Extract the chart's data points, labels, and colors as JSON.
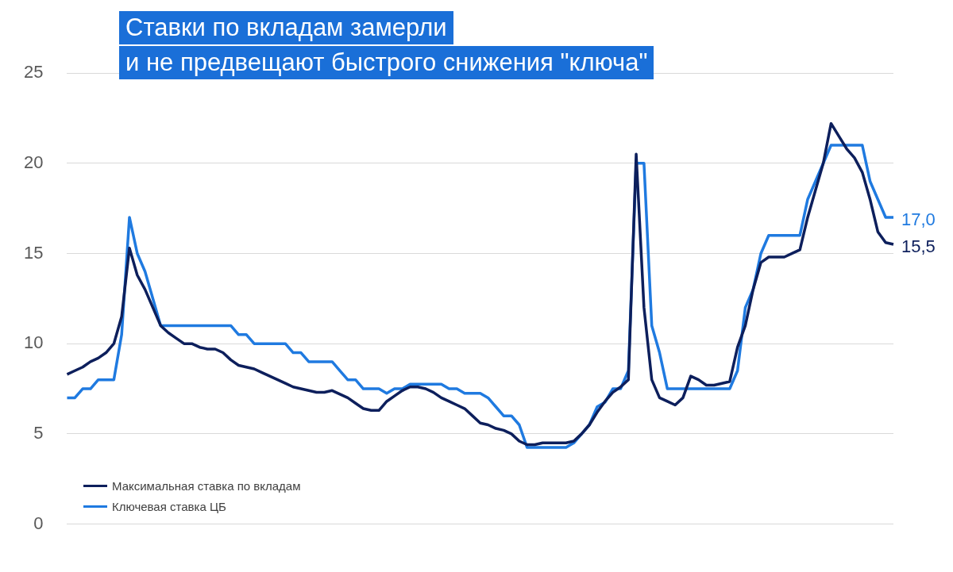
{
  "chart_data": {
    "type": "line",
    "title": "Ставки по вкладам замерли\nи не предвещают быстрого снижения \"ключа\"",
    "categories": [
      null,
      null,
      null,
      null,
      null,
      null,
      null,
      null,
      null,
      null,
      null,
      null,
      null,
      null,
      null,
      null,
      null,
      null,
      null,
      null,
      null,
      null,
      null,
      null,
      null,
      null,
      null,
      null,
      null,
      null,
      null,
      null,
      null,
      null,
      null,
      null,
      null,
      null,
      null,
      null,
      null,
      null,
      null,
      null,
      null,
      null,
      null,
      null,
      null,
      null,
      null,
      null,
      null,
      null,
      null,
      null,
      null,
      null,
      null,
      null,
      null,
      null,
      null,
      null,
      null,
      null,
      null,
      null,
      null,
      null,
      null,
      null,
      null,
      null,
      null,
      null,
      null,
      null,
      null,
      null,
      null,
      null,
      null,
      null,
      null,
      null,
      null,
      null,
      null,
      null,
      null,
      null,
      null,
      null,
      null,
      null,
      null,
      null,
      null,
      null,
      null,
      null,
      null,
      null,
      null,
      null,
      null
    ],
    "series": [
      {
        "name": "Максимальная ставка по вкладам",
        "color": "#0d1f5c",
        "values": [
          8.3,
          8.5,
          8.7,
          9,
          9.2,
          9.5,
          10,
          11.5,
          15.3,
          13.8,
          13,
          12,
          11,
          10.6,
          10.3,
          10,
          10,
          9.8,
          9.7,
          9.7,
          9.5,
          9.1,
          8.8,
          8.7,
          8.6,
          8.4,
          8.2,
          8,
          7.8,
          7.6,
          7.5,
          7.4,
          7.3,
          7.3,
          7.4,
          7.2,
          7,
          6.7,
          6.4,
          6.3,
          6.3,
          6.8,
          7.1,
          7.4,
          7.6,
          7.6,
          7.5,
          7.3,
          7,
          6.8,
          6.6,
          6.4,
          6,
          5.6,
          5.5,
          5.3,
          5.2,
          5,
          4.6,
          4.4,
          4.4,
          4.5,
          4.5,
          4.5,
          4.5,
          4.6,
          5,
          5.5,
          6.2,
          6.8,
          7.3,
          7.6,
          8,
          20.5,
          12,
          8,
          7,
          6.8,
          6.6,
          7,
          8.2,
          8,
          7.7,
          7.7,
          7.8,
          7.9,
          9.8,
          11,
          13,
          14.5,
          14.8,
          14.8,
          14.8,
          15,
          15.2,
          17,
          18.5,
          20,
          22.2,
          21.5,
          20.8,
          20.3,
          19.5,
          18,
          16.2,
          15.6,
          15.5
        ],
        "value_labels": [
          null,
          null,
          null,
          null,
          null,
          null,
          null,
          null,
          null,
          null,
          null,
          null,
          null,
          null,
          null,
          null,
          null,
          null,
          null,
          null,
          null,
          null,
          null,
          null,
          null,
          null,
          null,
          null,
          null,
          null,
          null,
          null,
          null,
          null,
          null,
          null,
          null,
          null,
          null,
          null,
          null,
          null,
          null,
          null,
          null,
          null,
          null,
          null,
          null,
          null,
          null,
          null,
          null,
          null,
          null,
          null,
          null,
          null,
          null,
          null,
          null,
          null,
          null,
          null,
          null,
          null,
          null,
          null,
          null,
          null,
          null,
          null,
          null,
          null,
          null,
          null,
          null,
          null,
          null,
          null,
          null,
          null,
          null,
          null,
          null,
          null,
          null,
          null,
          null,
          null,
          null,
          null,
          null,
          null,
          null,
          null,
          null,
          null,
          null,
          null,
          null,
          null,
          null,
          null,
          null,
          null,
          "15,5"
        ]
      },
      {
        "name": "Ключевая ставка ЦБ",
        "color": "#1f7ae0",
        "values": [
          7,
          7,
          7.5,
          7.5,
          8,
          8,
          8,
          10.5,
          17,
          15,
          14,
          12.5,
          11,
          11,
          11,
          11,
          11,
          11,
          11,
          11,
          11,
          11,
          10.5,
          10.5,
          10,
          10,
          10,
          10,
          10,
          9.5,
          9.5,
          9,
          9,
          9,
          9,
          8.5,
          8,
          8,
          7.5,
          7.5,
          7.5,
          7.25,
          7.5,
          7.5,
          7.75,
          7.75,
          7.75,
          7.75,
          7.75,
          7.5,
          7.5,
          7.25,
          7.25,
          7.25,
          7,
          6.5,
          6,
          6,
          5.5,
          4.25,
          4.25,
          4.25,
          4.25,
          4.25,
          4.25,
          4.5,
          5,
          5.5,
          6.5,
          6.75,
          7.5,
          7.5,
          8.5,
          20,
          20,
          11,
          9.5,
          7.5,
          7.5,
          7.5,
          7.5,
          7.5,
          7.5,
          7.5,
          7.5,
          7.5,
          8.5,
          12,
          13,
          15,
          16,
          16,
          16,
          16,
          16,
          18,
          19,
          20,
          21,
          21,
          21,
          21,
          21,
          19,
          18,
          17,
          17
        ],
        "value_labels": [
          null,
          null,
          null,
          null,
          null,
          null,
          null,
          null,
          null,
          null,
          null,
          null,
          null,
          null,
          null,
          null,
          null,
          null,
          null,
          null,
          null,
          null,
          null,
          null,
          null,
          null,
          null,
          null,
          null,
          null,
          null,
          null,
          null,
          null,
          null,
          null,
          null,
          null,
          null,
          null,
          null,
          null,
          null,
          null,
          null,
          null,
          null,
          null,
          null,
          null,
          null,
          null,
          null,
          null,
          null,
          null,
          null,
          null,
          null,
          null,
          null,
          null,
          null,
          null,
          null,
          null,
          null,
          null,
          null,
          null,
          null,
          null,
          null,
          null,
          null,
          null,
          null,
          null,
          null,
          null,
          null,
          null,
          null,
          null,
          null,
          null,
          null,
          null,
          null,
          null,
          null,
          null,
          null,
          null,
          null,
          null,
          null,
          null,
          null,
          null,
          null,
          null,
          null,
          null,
          null,
          null,
          "17,0"
        ]
      }
    ],
    "ylim": [
      0,
      25
    ],
    "yticks": [
      0,
      5,
      10,
      15,
      20,
      25
    ],
    "grid": "y",
    "legend": "bottom left",
    "marker": "none",
    "line_style": "solid"
  }
}
